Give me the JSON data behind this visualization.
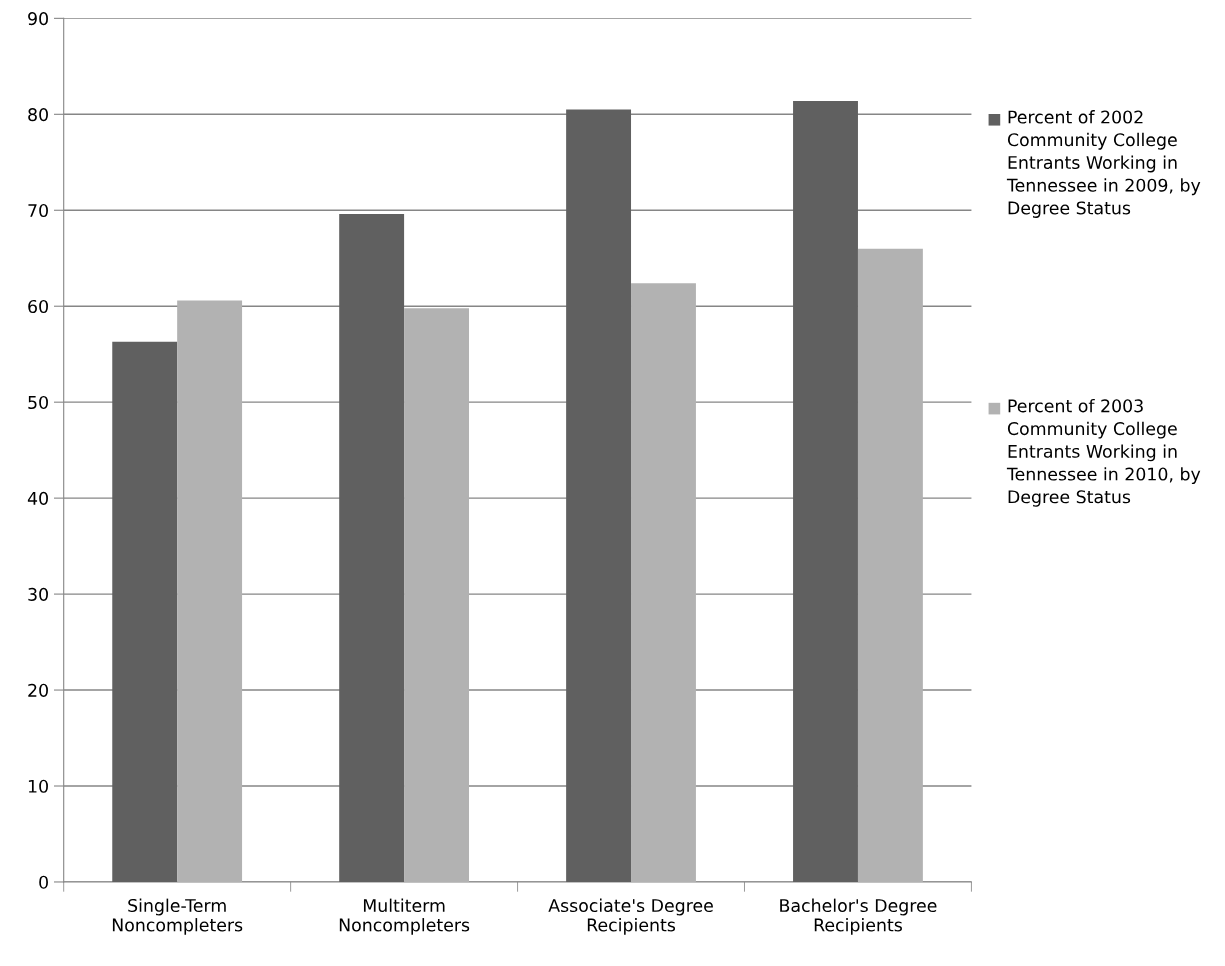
{
  "chart_data": {
    "type": "bar",
    "categories": [
      "Single-Term\nNoncompleters",
      "Multiterm\nNoncompleters",
      "Associate's Degree\nRecipients",
      "Bachelor's Degree\nRecipients"
    ],
    "series": [
      {
        "name": "Percent of 2002 Community College Entrants Working in Tennessee in 2009, by Degree Status",
        "color": "#606060",
        "values": [
          56.3,
          69.6,
          80.5,
          81.4
        ]
      },
      {
        "name": "Percent of 2003 Community College Entrants Working in Tennessee in 2010, by Degree Status",
        "color": "#b2b2b2",
        "values": [
          60.6,
          59.8,
          62.4,
          66.0
        ]
      }
    ],
    "ylim": [
      0,
      90
    ],
    "yticks": [
      0,
      10,
      20,
      30,
      40,
      50,
      60,
      70,
      80,
      90
    ],
    "grid": "y",
    "legend": "right"
  }
}
